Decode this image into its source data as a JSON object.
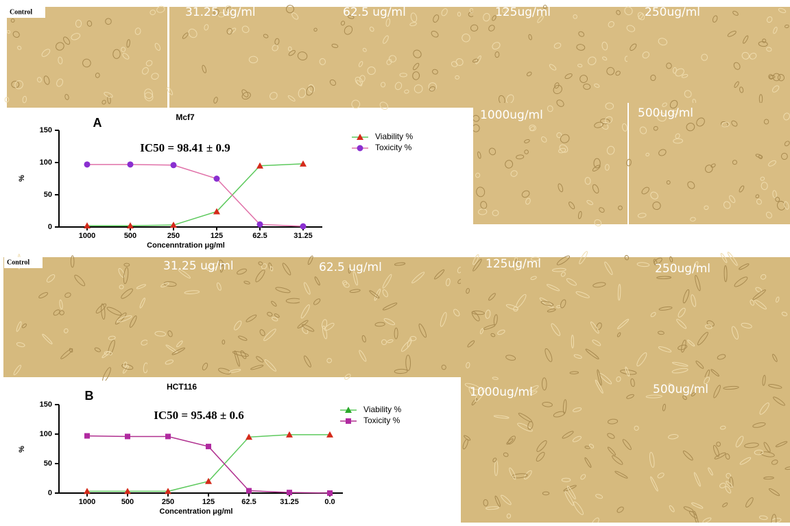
{
  "top_labels": [
    "Control",
    "31.25 ug/ml",
    "62.5 ug/ml",
    "125ug/ml",
    "250ug/ml",
    "1000ug/ml",
    "500ug/ml"
  ],
  "bottom_labels": [
    "Control",
    "31.25 ug/ml",
    "62.5 ug/ml",
    "125ug/ml",
    "250ug/ml",
    "1000ug/ml",
    "500ug/ml"
  ],
  "chart_data": [
    {
      "type": "line",
      "panel": "A",
      "title": "Mcf7",
      "annotation": "IC50 = 98.41 ± 0.9",
      "x_label": "Concenntration μg/ml",
      "y_label": "%",
      "categories": [
        "1000",
        "500",
        "250",
        "125",
        "62.5",
        "31.25"
      ],
      "ylim": [
        0,
        150
      ],
      "yticks": [
        0,
        50,
        100,
        150
      ],
      "series": [
        {
          "name": "Viability %",
          "color": "#5cc95c",
          "marker": "triangle",
          "marker_color": "#d42a1a",
          "values": [
            2,
            2,
            3,
            24,
            95,
            98
          ]
        },
        {
          "name": "Toxicity %",
          "color": "#e070a8",
          "marker": "circle",
          "marker_color": "#8a2fd0",
          "values": [
            97,
            97,
            96,
            75,
            4,
            1
          ]
        }
      ]
    },
    {
      "type": "line",
      "panel": "B",
      "title": "HCT116",
      "annotation": "IC50 = 95.48 ± 0.6",
      "x_label": "Concentration μg/ml",
      "y_label": "%",
      "categories": [
        "1000",
        "500",
        "250",
        "125",
        "62.5",
        "31.25",
        "0.0"
      ],
      "ylim": [
        0,
        150
      ],
      "yticks": [
        0,
        50,
        100,
        150
      ],
      "series": [
        {
          "name": "Viability %",
          "color": "#5cc95c",
          "marker": "triangle",
          "marker_color": "#d42a1a",
          "legend_marker_color": "#2aa82a",
          "values": [
            3,
            3,
            3,
            20,
            95,
            99,
            99
          ]
        },
        {
          "name": "Toxicity %",
          "color": "#b0308f",
          "marker": "square",
          "marker_color": "#b02aa0",
          "values": [
            97,
            96,
            96,
            79,
            4,
            1,
            0
          ]
        }
      ]
    }
  ]
}
